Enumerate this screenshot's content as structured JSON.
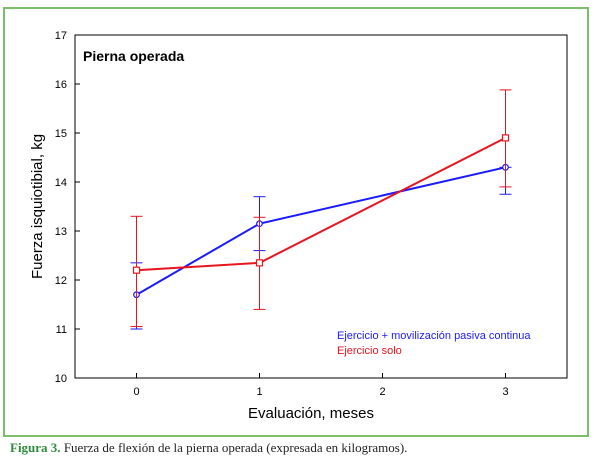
{
  "caption": {
    "label": "Figura 3.",
    "text": " Fuerza de flexión de la pierna operada (expresada en kilogramos)."
  },
  "chart_data": {
    "type": "line",
    "title": "Pierna operada",
    "xlabel": "Evaluación, meses",
    "ylabel": "Fuerza isquiotibial, kg",
    "x": [
      0,
      1,
      3
    ],
    "xticks": [
      "0",
      "1",
      "2",
      "3"
    ],
    "xlim": [
      -0.5,
      3.5
    ],
    "ylim": [
      10,
      17
    ],
    "yticks": [
      "10",
      "11",
      "12",
      "13",
      "14",
      "15",
      "16",
      "17"
    ],
    "legend_position": "bottom-right",
    "grid": false,
    "series": [
      {
        "name": "Ejercicio + movilización pasiva continua",
        "color": "#1a1aff",
        "marker": "circle",
        "values": [
          11.7,
          13.15,
          14.3
        ],
        "err_low": [
          11.0,
          12.6,
          13.75
        ],
        "err_high": [
          12.35,
          13.7,
          14.3
        ]
      },
      {
        "name": "Ejercicio solo",
        "color": "#e8141e",
        "marker": "square",
        "values": [
          12.2,
          12.35,
          14.9
        ],
        "err_low": [
          11.05,
          11.4,
          13.9
        ],
        "err_high": [
          13.3,
          13.28,
          15.88
        ]
      }
    ]
  }
}
